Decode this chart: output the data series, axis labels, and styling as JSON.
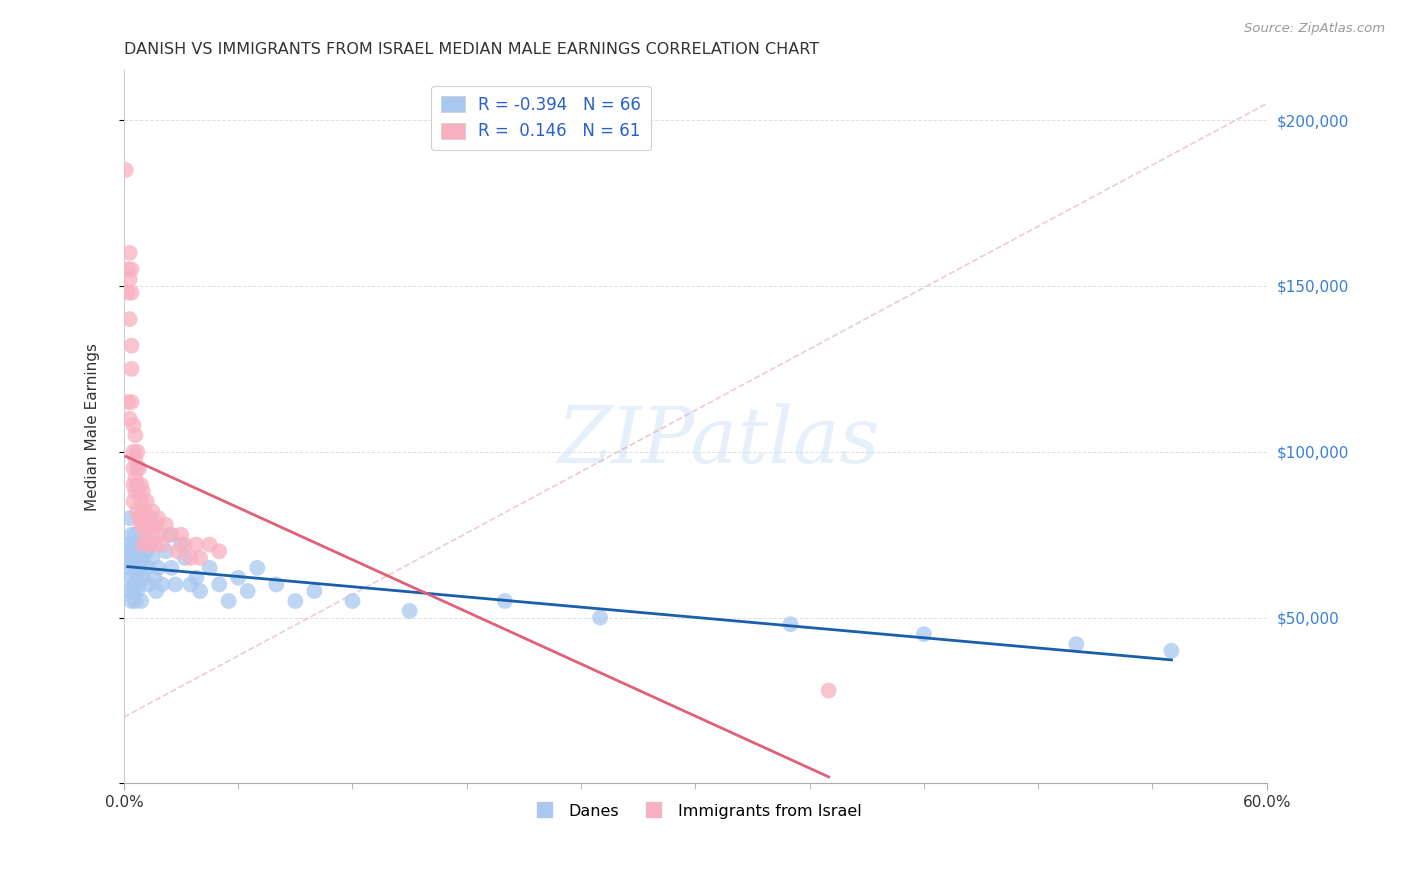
{
  "title": "DANISH VS IMMIGRANTS FROM ISRAEL MEDIAN MALE EARNINGS CORRELATION CHART",
  "source": "Source: ZipAtlas.com",
  "ylabel": "Median Male Earnings",
  "watermark": "ZIPatlas",
  "danes_R": -0.394,
  "danes_N": 66,
  "israel_R": 0.146,
  "israel_N": 61,
  "danes_color": "#a8c8f0",
  "danes_line_color": "#1a5faa",
  "israel_color": "#f8b0c0",
  "israel_line_color": "#e0607a",
  "dash_line_color": "#e0a0b0",
  "background_color": "#ffffff",
  "grid_color": "#cccccc",
  "xlim": [
    0.0,
    0.6
  ],
  "ylim": [
    0,
    215000
  ],
  "yticks": [
    0,
    50000,
    100000,
    150000,
    200000
  ],
  "ytick_right_labels": [
    "",
    "$50,000",
    "$100,000",
    "$150,000",
    "$200,000"
  ],
  "danes_x": [
    0.002,
    0.003,
    0.003,
    0.003,
    0.003,
    0.004,
    0.004,
    0.004,
    0.004,
    0.005,
    0.005,
    0.005,
    0.005,
    0.005,
    0.006,
    0.006,
    0.006,
    0.006,
    0.007,
    0.007,
    0.007,
    0.007,
    0.008,
    0.008,
    0.008,
    0.009,
    0.009,
    0.009,
    0.01,
    0.01,
    0.011,
    0.012,
    0.012,
    0.013,
    0.014,
    0.015,
    0.016,
    0.017,
    0.018,
    0.02,
    0.022,
    0.024,
    0.025,
    0.027,
    0.03,
    0.032,
    0.035,
    0.038,
    0.04,
    0.045,
    0.05,
    0.055,
    0.06,
    0.065,
    0.07,
    0.08,
    0.09,
    0.1,
    0.12,
    0.15,
    0.2,
    0.25,
    0.35,
    0.42,
    0.5,
    0.55
  ],
  "danes_y": [
    68000,
    72000,
    65000,
    58000,
    80000,
    75000,
    70000,
    62000,
    55000,
    60000,
    65000,
    72000,
    68000,
    58000,
    65000,
    60000,
    75000,
    55000,
    70000,
    62000,
    68000,
    58000,
    65000,
    72000,
    60000,
    55000,
    70000,
    65000,
    68000,
    62000,
    75000,
    70000,
    65000,
    60000,
    72000,
    68000,
    62000,
    58000,
    65000,
    60000,
    70000,
    75000,
    65000,
    60000,
    72000,
    68000,
    60000,
    62000,
    58000,
    65000,
    60000,
    55000,
    62000,
    58000,
    65000,
    60000,
    55000,
    58000,
    55000,
    52000,
    55000,
    50000,
    48000,
    45000,
    42000,
    40000
  ],
  "israel_x": [
    0.001,
    0.002,
    0.002,
    0.002,
    0.003,
    0.003,
    0.003,
    0.003,
    0.004,
    0.004,
    0.004,
    0.004,
    0.004,
    0.005,
    0.005,
    0.005,
    0.005,
    0.005,
    0.006,
    0.006,
    0.006,
    0.006,
    0.007,
    0.007,
    0.007,
    0.007,
    0.008,
    0.008,
    0.008,
    0.009,
    0.009,
    0.009,
    0.01,
    0.01,
    0.01,
    0.01,
    0.011,
    0.011,
    0.012,
    0.012,
    0.013,
    0.013,
    0.014,
    0.015,
    0.015,
    0.016,
    0.017,
    0.018,
    0.019,
    0.02,
    0.022,
    0.025,
    0.028,
    0.03,
    0.032,
    0.035,
    0.038,
    0.04,
    0.045,
    0.05,
    0.37
  ],
  "israel_y": [
    185000,
    155000,
    148000,
    115000,
    160000,
    152000,
    140000,
    110000,
    155000,
    148000,
    132000,
    125000,
    115000,
    108000,
    100000,
    95000,
    90000,
    85000,
    105000,
    98000,
    92000,
    88000,
    100000,
    95000,
    90000,
    82000,
    95000,
    88000,
    80000,
    90000,
    85000,
    78000,
    88000,
    82000,
    78000,
    72000,
    82000,
    75000,
    85000,
    78000,
    80000,
    72000,
    78000,
    82000,
    75000,
    72000,
    78000,
    80000,
    75000,
    72000,
    78000,
    75000,
    70000,
    75000,
    72000,
    68000,
    72000,
    68000,
    72000,
    70000,
    28000
  ],
  "dash_line_x": [
    0.0,
    0.6
  ],
  "dash_line_y": [
    20000,
    205000
  ]
}
